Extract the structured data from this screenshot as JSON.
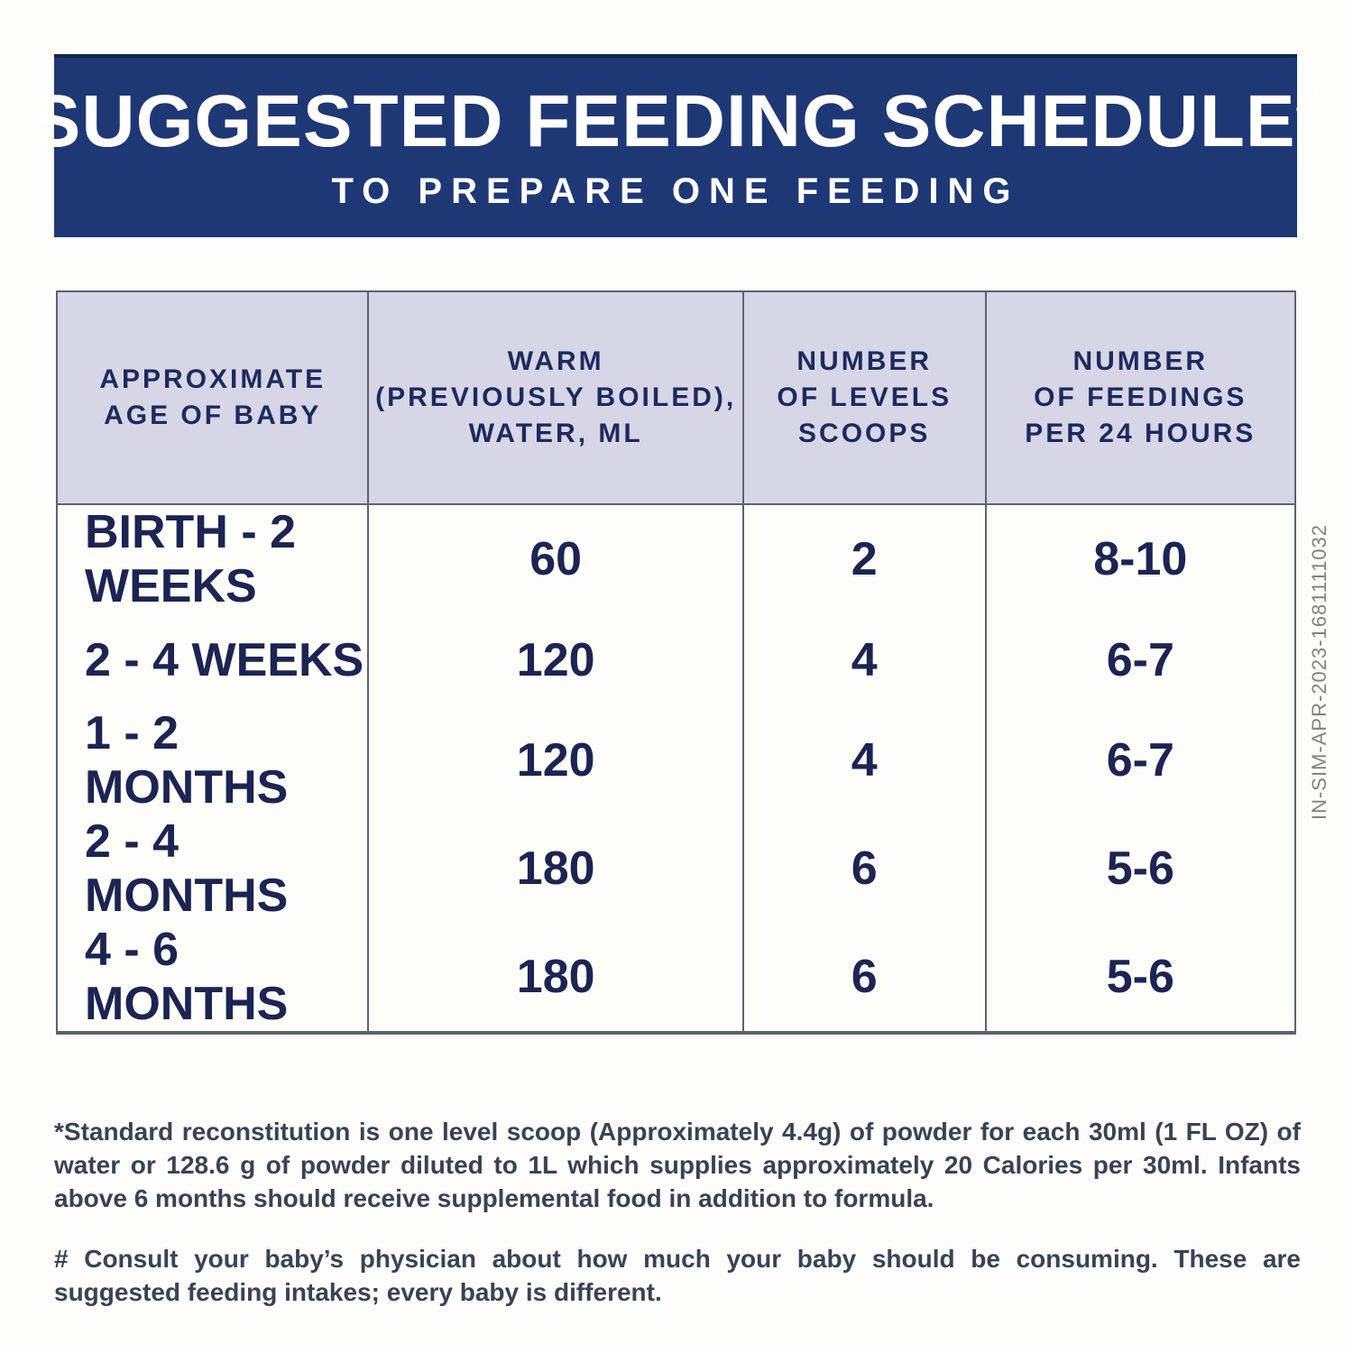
{
  "banner": {
    "title": "SUGGESTED FEEDING SCHEDULE",
    "title_mark": "#",
    "subtitle": "TO PREPARE ONE FEEDING",
    "bg_color": "#1e3876",
    "text_color": "#ffffff"
  },
  "table": {
    "headers": [
      "APPROXIMATE\nAGE OF BABY",
      "WARM\n(PREVIOUSLY BOILED),\nWATER, ML",
      "NUMBER\nOF LEVELS\nSCOOPS",
      "NUMBER\nOF FEEDINGS\nPER 24 HOURS"
    ],
    "rows": [
      [
        "BIRTH - 2 WEEKS",
        "60",
        "2",
        "8-10"
      ],
      [
        "2 - 4 WEEKS",
        "120",
        "4",
        "6-7"
      ],
      [
        "1 - 2 MONTHS",
        "120",
        "4",
        "6-7"
      ],
      [
        "2 - 4 MONTHS",
        "180",
        "6",
        "5-6"
      ],
      [
        "4 - 6 MONTHS",
        "180",
        "6",
        "5-6"
      ]
    ],
    "header_bg": "#d6d6e6",
    "text_color": "#1c2453",
    "border_color": "#5d6272"
  },
  "footnotes": {
    "reconstitution": "*Standard reconstitution is one level scoop (Approximately 4.4g) of powder for each 30ml (1 FL OZ) of water or 128.6 g of powder diluted to 1L which supplies approximately 20 Calories per 30ml. Infants above 6 months should receive supplemental food in addition to formula.",
    "consult": "# Consult your baby’s physician about how much your baby should be consuming. These are suggested feeding intakes; every baby is different."
  },
  "side_code": "IN-SIM-APR-2023-1681111032",
  "chart_data": {
    "type": "table",
    "title": "SUGGESTED FEEDING SCHEDULE#",
    "subtitle": "TO PREPARE ONE FEEDING",
    "columns": [
      "APPROXIMATE AGE OF BABY",
      "WARM (PREVIOUSLY BOILED), WATER, ML",
      "NUMBER OF LEVELS SCOOPS",
      "NUMBER OF FEEDINGS PER 24 HOURS"
    ],
    "rows": [
      [
        "BIRTH - 2 WEEKS",
        60,
        2,
        "8-10"
      ],
      [
        "2 - 4 WEEKS",
        120,
        4,
        "6-7"
      ],
      [
        "1 - 2 MONTHS",
        120,
        4,
        "6-7"
      ],
      [
        "2 - 4 MONTHS",
        180,
        6,
        "5-6"
      ],
      [
        "4 - 6 MONTHS",
        180,
        6,
        "5-6"
      ]
    ],
    "footnotes": [
      "*Standard reconstitution is one level scoop (Approximately 4.4g) of powder for each 30ml (1 FL OZ) of water or 128.6 g of powder diluted to 1L which supplies approximately 20 Calories per 30ml. Infants above 6 months should receive supplemental food in addition to formula.",
      "# Consult your baby’s physician about how much your baby should be consuming. These are suggested feeding intakes; every baby is different."
    ]
  }
}
